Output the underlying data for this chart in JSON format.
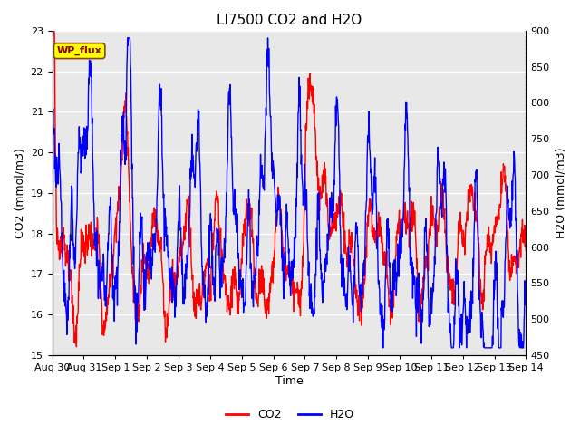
{
  "title": "LI7500 CO2 and H2O",
  "xlabel": "Time",
  "ylabel_left": "CO2 (mmol/m3)",
  "ylabel_right": "H2O (mmol/m3)",
  "ylim_left": [
    15.0,
    23.0
  ],
  "ylim_right": [
    450,
    900
  ],
  "yticks_left": [
    15.0,
    16.0,
    17.0,
    18.0,
    19.0,
    20.0,
    21.0,
    22.0,
    23.0
  ],
  "yticks_right": [
    450,
    500,
    550,
    600,
    650,
    700,
    750,
    800,
    850,
    900
  ],
  "xtick_labels": [
    "Aug 30",
    "Aug 31",
    "Sep 1",
    "Sep 2",
    "Sep 3",
    "Sep 4",
    "Sep 5",
    "Sep 6",
    "Sep 7",
    "Sep 8",
    "Sep 9",
    "Sep 10",
    "Sep 11",
    "Sep 12",
    "Sep 13",
    "Sep 14"
  ],
  "annotation_text": "WP_flux",
  "co2_color": "#FF0000",
  "h2o_color": "#0000FF",
  "background_color": "#E8E8E8",
  "plot_bg_color": "#FFFFFF",
  "title_fontsize": 11,
  "axis_label_fontsize": 9,
  "tick_fontsize": 8,
  "linewidth": 1.0
}
